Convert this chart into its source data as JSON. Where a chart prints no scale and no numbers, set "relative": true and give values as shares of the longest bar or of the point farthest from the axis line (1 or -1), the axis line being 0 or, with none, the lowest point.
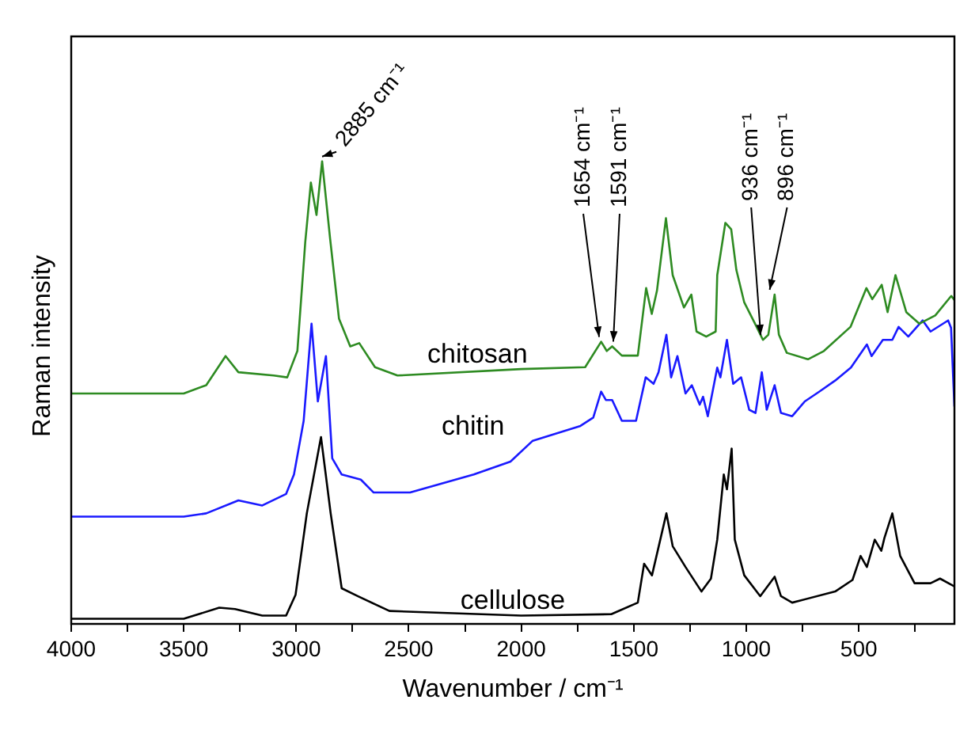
{
  "chart_data": {
    "type": "line",
    "relative": true,
    "xlabel": "Wavenumber / cm⁻¹",
    "ylabel": "Raman intensity",
    "xlim": [
      4000,
      75
    ],
    "xticks": [
      4000,
      {
        "value": 3750,
        "label": null
      },
      3500,
      {
        "value": 3250,
        "label": null
      },
      3000,
      {
        "value": 2750,
        "label": null
      },
      2500,
      {
        "value": 2250,
        "label": null
      },
      2000,
      {
        "value": 1750,
        "label": null
      },
      1500,
      {
        "value": 1250,
        "label": null
      },
      1000,
      {
        "value": 750,
        "label": null
      },
      500,
      {
        "value": 250,
        "label": null
      }
    ],
    "grid": false,
    "legend": false,
    "marker": "none",
    "line_style": "solid",
    "tick_labels": "x",
    "series": [
      {
        "name": "chitosan",
        "color": "#2e8b22",
        "x": [
          4000,
          3500,
          3400,
          3314,
          3257,
          3100,
          3040,
          2995,
          2960,
          2935,
          2910,
          2885,
          2850,
          2810,
          2760,
          2720,
          2650,
          2550,
          2000,
          1716,
          1645,
          1620,
          1596,
          1553,
          1482,
          1445,
          1420,
          1397,
          1357,
          1327,
          1277,
          1244,
          1221,
          1178,
          1136,
          1129,
          1093,
          1067,
          1044,
          1009,
          961,
          926,
          902,
          874,
          855,
          820,
          726,
          655,
          537,
          466,
          440,
          398,
          372,
          337,
          289,
          231,
          160,
          89,
          75
        ],
        "values": [
          0.498,
          0.498,
          0.516,
          0.579,
          0.544,
          0.537,
          0.533,
          0.59,
          0.825,
          0.954,
          0.884,
          1.0,
          0.835,
          0.66,
          0.6,
          0.607,
          0.555,
          0.537,
          0.551,
          0.555,
          0.61,
          0.59,
          0.6,
          0.58,
          0.58,
          0.726,
          0.67,
          0.72,
          0.877,
          0.754,
          0.684,
          0.712,
          0.632,
          0.621,
          0.632,
          0.754,
          0.867,
          0.853,
          0.765,
          0.695,
          0.649,
          0.614,
          0.625,
          0.712,
          0.625,
          0.586,
          0.572,
          0.59,
          0.642,
          0.726,
          0.702,
          0.733,
          0.674,
          0.754,
          0.674,
          0.649,
          0.667,
          0.709,
          0.7
        ]
      },
      {
        "name": "chitin",
        "color": "#1a1aff",
        "x": [
          4000,
          3500,
          3400,
          3257,
          3151,
          3045,
          3010,
          2967,
          2932,
          2904,
          2868,
          2840,
          2798,
          2713,
          2656,
          2494,
          2211,
          2048,
          1949,
          1737,
          1680,
          1645,
          1624,
          1596,
          1553,
          1490,
          1447,
          1412,
          1390,
          1355,
          1334,
          1306,
          1270,
          1242,
          1207,
          1192,
          1171,
          1129,
          1115,
          1086,
          1058,
          1023,
          987,
          959,
          931,
          909,
          874,
          846,
          796,
          740,
          676,
          605,
          535,
          464,
          443,
          393,
          351,
          323,
          280,
          216,
          181,
          103,
          90,
          75
        ],
        "values": [
          0.232,
          0.232,
          0.239,
          0.267,
          0.256,
          0.281,
          0.323,
          0.439,
          0.649,
          0.481,
          0.579,
          0.358,
          0.323,
          0.312,
          0.284,
          0.284,
          0.323,
          0.351,
          0.396,
          0.428,
          0.446,
          0.502,
          0.484,
          0.484,
          0.439,
          0.439,
          0.533,
          0.519,
          0.544,
          0.625,
          0.533,
          0.579,
          0.498,
          0.516,
          0.474,
          0.491,
          0.449,
          0.554,
          0.533,
          0.614,
          0.519,
          0.533,
          0.463,
          0.456,
          0.544,
          0.463,
          0.516,
          0.456,
          0.449,
          0.481,
          0.502,
          0.526,
          0.554,
          0.604,
          0.579,
          0.614,
          0.614,
          0.642,
          0.621,
          0.656,
          0.632,
          0.656,
          0.64,
          0.47
        ]
      },
      {
        "name": "cellulose",
        "color": "#000000",
        "x": [
          4000,
          3500,
          3342,
          3272,
          3151,
          3045,
          3003,
          2953,
          2890,
          2847,
          2798,
          2727,
          2586,
          2000,
          1600,
          1482,
          1454,
          1419,
          1355,
          1327,
          1270,
          1199,
          1157,
          1129,
          1100,
          1086,
          1065,
          1051,
          1009,
          938,
          874,
          846,
          796,
          605,
          528,
          492,
          464,
          429,
          400,
          386,
          351,
          316,
          252,
          181,
          139,
          75
        ],
        "values": [
          0.011,
          0.011,
          0.035,
          0.032,
          0.018,
          0.018,
          0.063,
          0.239,
          0.404,
          0.239,
          0.077,
          0.06,
          0.028,
          0.018,
          0.021,
          0.046,
          0.13,
          0.105,
          0.239,
          0.168,
          0.123,
          0.07,
          0.098,
          0.182,
          0.323,
          0.291,
          0.379,
          0.182,
          0.105,
          0.06,
          0.102,
          0.06,
          0.046,
          0.07,
          0.095,
          0.147,
          0.123,
          0.182,
          0.158,
          0.186,
          0.239,
          0.147,
          0.088,
          0.088,
          0.098,
          0.081
        ]
      }
    ],
    "annotations": [
      {
        "text": "2885 cm⁻¹",
        "x": 2885,
        "y": 1.0
      },
      {
        "text": "1654 cm⁻¹",
        "x": 1654,
        "y": 0.61
      },
      {
        "text": "1591 cm⁻¹",
        "x": 1591,
        "y": 0.6
      },
      {
        "text": "936 cm⁻¹",
        "x": 936,
        "y": 0.614
      },
      {
        "text": "896 cm⁻¹",
        "x": 896,
        "y": 0.712
      }
    ]
  }
}
